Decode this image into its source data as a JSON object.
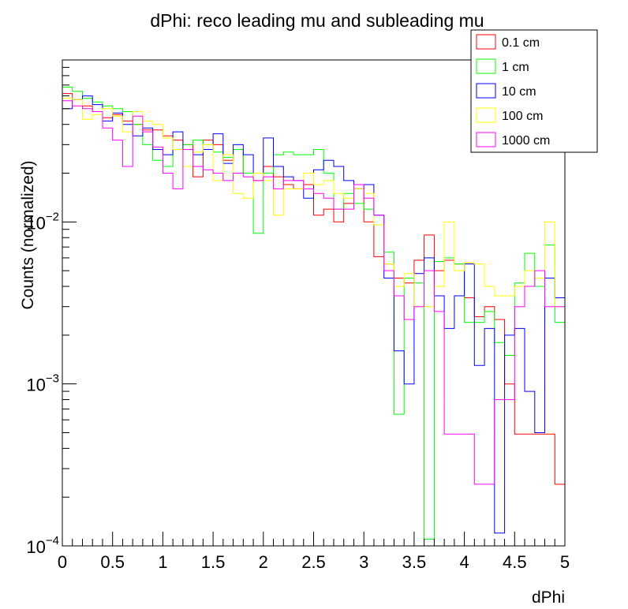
{
  "chart_data": {
    "type": "line",
    "title": "dPhi: reco leading mu and subleading mu",
    "xlabel": "dPhi",
    "ylabel": "Counts (normalized)",
    "xlim": [
      0,
      5
    ],
    "ylim": [
      0.0001,
      0.1
    ],
    "y_scale": "log",
    "grid": false,
    "legend_position": "top-right",
    "x_ticks": [
      0,
      0.5,
      1,
      1.5,
      2,
      2.5,
      3,
      3.5,
      4,
      4.5,
      5
    ],
    "x_tick_labels": [
      "0",
      "0.5",
      "1",
      "1.5",
      "2",
      "2.5",
      "3",
      "3.5",
      "4",
      "4.5",
      "5"
    ],
    "y_ticks": [
      0.0001,
      0.001,
      0.01
    ],
    "y_tick_labels": [
      {
        "base": "10",
        "exp": "-4"
      },
      {
        "base": "10",
        "exp": "-3"
      },
      {
        "base": "10",
        "exp": "-2"
      }
    ],
    "bin_edges": [
      0,
      0.1,
      0.2,
      0.3,
      0.4,
      0.5,
      0.6,
      0.7,
      0.8,
      0.9,
      1.0,
      1.1,
      1.2,
      1.3,
      1.4,
      1.5,
      1.6,
      1.7,
      1.8,
      1.9,
      2.0,
      2.1,
      2.2,
      2.3,
      2.4,
      2.5,
      2.6,
      2.7,
      2.8,
      2.9,
      3.0,
      3.1,
      3.2,
      3.3,
      3.4,
      3.5,
      3.6,
      3.7,
      3.8,
      3.9,
      4.0,
      4.1,
      4.2,
      4.3,
      4.4,
      4.5,
      4.6,
      4.7,
      4.8,
      4.9,
      5.0
    ],
    "series": [
      {
        "name": "0.1 cm",
        "color": "#ff0000",
        "values": [
          0.062,
          0.057,
          0.052,
          0.048,
          0.044,
          0.046,
          0.042,
          0.04,
          0.037,
          0.037,
          0.034,
          0.032,
          0.03,
          0.019,
          0.032,
          0.03,
          0.024,
          0.028,
          0.02,
          0.018,
          0.022,
          0.019,
          0.017,
          0.016,
          0.017,
          0.011,
          0.012,
          0.01,
          0.013,
          0.016,
          0.01,
          0.0061,
          0.0055,
          0.0045,
          0.0042,
          0.0058,
          0.0083,
          0.005,
          0.0058,
          0.0055,
          0.0034,
          0.0026,
          0.003,
          0.0025,
          0.001,
          0.00049,
          0.00049,
          0.00049,
          0.00049,
          0.00024
        ]
      },
      {
        "name": "1 cm",
        "color": "#00ff00",
        "values": [
          0.068,
          0.064,
          0.058,
          0.055,
          0.052,
          0.05,
          0.048,
          0.04,
          0.03,
          0.024,
          0.022,
          0.028,
          0.03,
          0.032,
          0.03,
          0.027,
          0.025,
          0.028,
          0.02,
          0.0085,
          0.02,
          0.026,
          0.027,
          0.026,
          0.026,
          0.028,
          0.02,
          0.012,
          0.015,
          0.013,
          0.012,
          0.011,
          0.0065,
          0.00065,
          0.0045,
          0.0042,
          0.00011,
          0.0057,
          0.006,
          0.0055,
          0.0024,
          0.0024,
          0.0028,
          0.0018,
          0.0015,
          0.0042,
          0.0064,
          0.004,
          0.0072,
          0.0024
        ]
      },
      {
        "name": "10 cm",
        "color": "#0000ff",
        "values": [
          0.05,
          0.057,
          0.06,
          0.053,
          0.042,
          0.047,
          0.04,
          0.034,
          0.038,
          0.028,
          0.026,
          0.036,
          0.028,
          0.026,
          0.028,
          0.035,
          0.023,
          0.03,
          0.026,
          0.02,
          0.033,
          0.022,
          0.019,
          0.018,
          0.014,
          0.021,
          0.024,
          0.022,
          0.018,
          0.016,
          0.017,
          0.011,
          0.0045,
          0.0016,
          0.001,
          0.0048,
          0.006,
          0.0035,
          0.0022,
          0.0035,
          0.0055,
          0.0013,
          0.0022,
          0.00012,
          0.002,
          0.0022,
          0.0009,
          0.0005,
          0.0045,
          0.0034
        ]
      },
      {
        "name": "100 cm",
        "color": "#ffff00",
        "values": [
          0.058,
          0.057,
          0.043,
          0.046,
          0.05,
          0.045,
          0.036,
          0.048,
          0.042,
          0.04,
          0.033,
          0.028,
          0.022,
          0.027,
          0.03,
          0.018,
          0.026,
          0.015,
          0.014,
          0.02,
          0.018,
          0.011,
          0.016,
          0.016,
          0.02,
          0.017,
          0.018,
          0.015,
          0.014,
          0.016,
          0.015,
          0.0096,
          0.0055,
          0.004,
          0.0048,
          0.003,
          0.003,
          0.004,
          0.01,
          0.005,
          0.0056,
          0.0055,
          0.004,
          0.0035,
          0.0035,
          0.004,
          0.005,
          0.0045,
          0.01,
          0.003
        ]
      },
      {
        "name": "1000 cm",
        "color": "#ff00ff",
        "values": [
          0.056,
          0.052,
          0.05,
          0.048,
          0.038,
          0.032,
          0.022,
          0.045,
          0.036,
          0.029,
          0.02,
          0.016,
          0.028,
          0.022,
          0.021,
          0.02,
          0.018,
          0.02,
          0.019,
          0.018,
          0.019,
          0.016,
          0.018,
          0.018,
          0.016,
          0.015,
          0.014,
          0.012,
          0.012,
          0.017,
          0.014,
          0.011,
          0.005,
          0.0035,
          0.0025,
          0.003,
          0.005,
          0.0028,
          0.00049,
          0.00049,
          0.00049,
          0.00024,
          0.00024,
          0.0008,
          0.0008,
          0.003,
          0.004,
          0.005,
          0.003,
          0.003
        ]
      }
    ]
  }
}
